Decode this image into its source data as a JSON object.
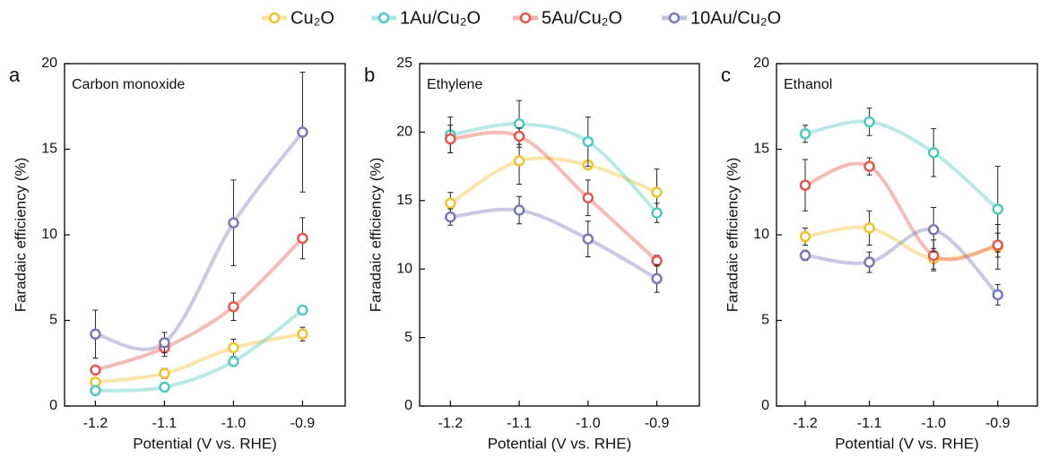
{
  "chart_data": [
    {
      "type": "line",
      "label": "a",
      "title": "Carbon monoxide",
      "xlabel": "Potential (V vs. RHE)",
      "ylabel": "Faradaic efficiency (%)",
      "categories": [
        "-1.2",
        "-1.1",
        "-1.0",
        "-0.9"
      ],
      "ylim": [
        0,
        20
      ],
      "yticks": [
        0,
        5,
        10,
        15,
        20
      ],
      "series": [
        {
          "name": "Cu₂O",
          "color": "#f2c12e",
          "values": [
            1.4,
            1.9,
            3.4,
            4.2
          ],
          "errors": [
            0.2,
            0.3,
            0.5,
            0.4
          ]
        },
        {
          "name": "1Au/Cu₂O",
          "color": "#4ec9c0",
          "values": [
            0.9,
            1.1,
            2.6,
            5.6
          ],
          "errors": [
            0.1,
            0.2,
            0.2,
            0.2
          ]
        },
        {
          "name": "5Au/Cu₂O",
          "color": "#e8554a",
          "values": [
            2.1,
            3.4,
            5.8,
            9.8
          ],
          "errors": [
            0.2,
            0.5,
            0.8,
            1.2
          ]
        },
        {
          "name": "10Au/Cu₂O",
          "color": "#7a78b8",
          "values": [
            4.2,
            3.7,
            10.7,
            16.0
          ],
          "errors": [
            1.4,
            0.6,
            2.5,
            3.5
          ]
        }
      ]
    },
    {
      "type": "line",
      "label": "b",
      "title": "Ethylene",
      "xlabel": "Potential (V vs. RHE)",
      "ylabel": "Faradaic efficiency (%)",
      "categories": [
        "-1.2",
        "-1.1",
        "-1.0",
        "-0.9"
      ],
      "ylim": [
        0,
        25
      ],
      "yticks": [
        0,
        5,
        10,
        15,
        20,
        25
      ],
      "series": [
        {
          "name": "Cu₂O",
          "color": "#f2c12e",
          "values": [
            14.8,
            17.9,
            17.6,
            15.6
          ],
          "errors": [
            0.8,
            1.7,
            0.3,
            1.7
          ]
        },
        {
          "name": "1Au/Cu₂O",
          "color": "#4ec9c0",
          "values": [
            19.8,
            20.6,
            19.3,
            14.1
          ],
          "errors": [
            1.3,
            1.7,
            1.8,
            0.7
          ]
        },
        {
          "name": "5Au/Cu₂O",
          "color": "#e8554a",
          "values": [
            19.5,
            19.7,
            15.2,
            10.6
          ],
          "errors": [
            1.0,
            0.6,
            1.3,
            0.4
          ]
        },
        {
          "name": "10Au/Cu₂O",
          "color": "#7a78b8",
          "values": [
            13.8,
            14.3,
            12.2,
            9.3
          ],
          "errors": [
            0.6,
            1.0,
            1.3,
            1.0
          ]
        }
      ]
    },
    {
      "type": "line",
      "label": "c",
      "title": "Ethanol",
      "xlabel": "Potential (V vs. RHE)",
      "ylabel": "Faradaic efficiency (%)",
      "categories": [
        "-1.2",
        "-1.1",
        "-1.0",
        "-0.9"
      ],
      "ylim": [
        0,
        20
      ],
      "yticks": [
        0,
        5,
        10,
        15,
        20
      ],
      "series": [
        {
          "name": "Cu₂O",
          "color": "#f2c12e",
          "values": [
            9.9,
            10.4,
            8.6,
            9.3
          ],
          "errors": [
            0.5,
            1.0,
            0.6,
            1.3
          ]
        },
        {
          "name": "1Au/Cu₂O",
          "color": "#4ec9c0",
          "values": [
            15.9,
            16.6,
            14.8,
            11.5
          ],
          "errors": [
            0.5,
            0.8,
            1.4,
            2.5
          ]
        },
        {
          "name": "5Au/Cu₂O",
          "color": "#e8554a",
          "values": [
            12.9,
            14.0,
            8.8,
            9.4
          ],
          "errors": [
            1.5,
            0.5,
            0.9,
            0.7
          ]
        },
        {
          "name": "10Au/Cu₂O",
          "color": "#7a78b8",
          "values": [
            8.8,
            8.4,
            10.3,
            6.5
          ],
          "errors": [
            0.3,
            0.6,
            1.3,
            0.6
          ]
        }
      ]
    }
  ]
}
